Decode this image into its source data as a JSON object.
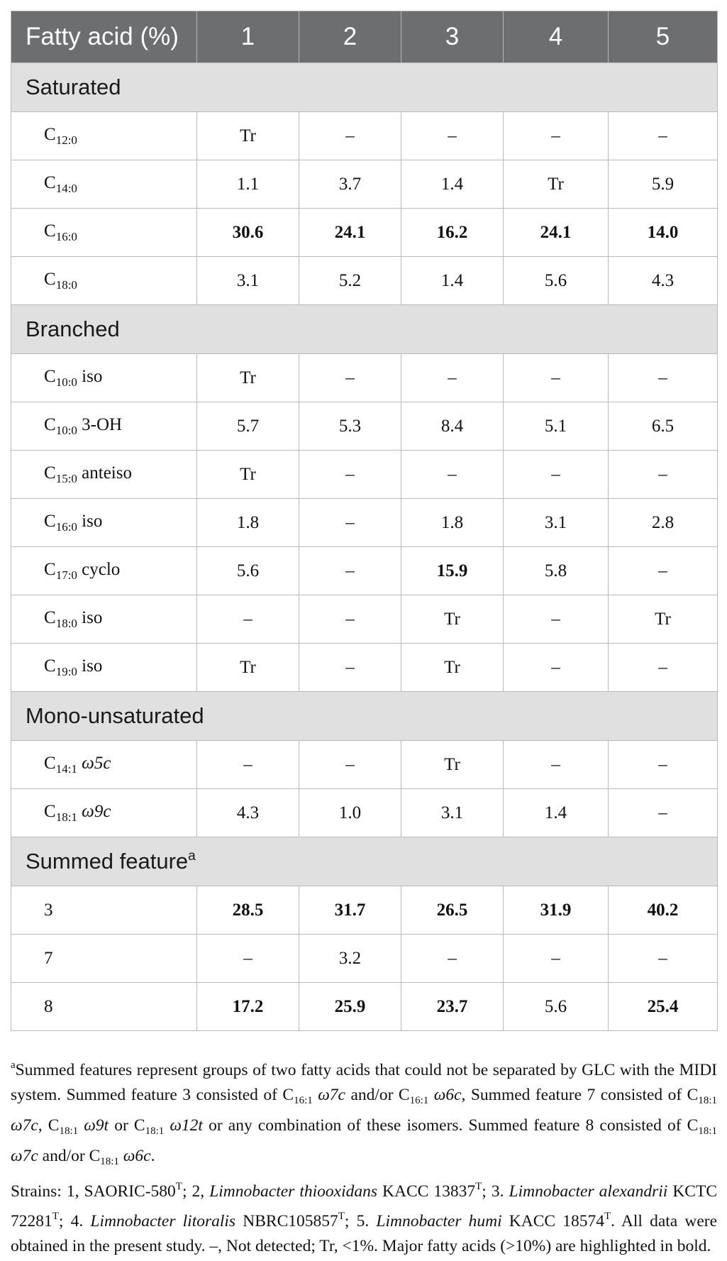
{
  "header": {
    "first": "Fatty acid (%)",
    "cols": [
      "1",
      "2",
      "3",
      "4",
      "5"
    ]
  },
  "sections": [
    {
      "title": "Saturated",
      "title_sup": "",
      "rows": [
        {
          "base": "C",
          "sub": "12:0",
          "suffix": "",
          "values": [
            "Tr",
            "–",
            "–",
            "–",
            "–"
          ],
          "bold": [
            false,
            false,
            false,
            false,
            false
          ]
        },
        {
          "base": "C",
          "sub": "14:0",
          "suffix": "",
          "values": [
            "1.1",
            "3.7",
            "1.4",
            "Tr",
            "5.9"
          ],
          "bold": [
            false,
            false,
            false,
            false,
            false
          ]
        },
        {
          "base": "C",
          "sub": "16:0",
          "suffix": "",
          "values": [
            "30.6",
            "24.1",
            "16.2",
            "24.1",
            "14.0"
          ],
          "bold": [
            true,
            true,
            true,
            true,
            true
          ]
        },
        {
          "base": "C",
          "sub": "18:0",
          "suffix": "",
          "values": [
            "3.1",
            "5.2",
            "1.4",
            "5.6",
            "4.3"
          ],
          "bold": [
            false,
            false,
            false,
            false,
            false
          ]
        }
      ]
    },
    {
      "title": "Branched",
      "title_sup": "",
      "rows": [
        {
          "base": "C",
          "sub": "10:0",
          "suffix": " iso",
          "values": [
            "Tr",
            "–",
            "–",
            "–",
            "–"
          ],
          "bold": [
            false,
            false,
            false,
            false,
            false
          ]
        },
        {
          "base": "C",
          "sub": "10:0",
          "suffix": " 3-OH",
          "values": [
            "5.7",
            "5.3",
            "8.4",
            "5.1",
            "6.5"
          ],
          "bold": [
            false,
            false,
            false,
            false,
            false
          ]
        },
        {
          "base": "C",
          "sub": "15:0",
          "suffix": " anteiso",
          "values": [
            "Tr",
            "–",
            "–",
            "–",
            "–"
          ],
          "bold": [
            false,
            false,
            false,
            false,
            false
          ]
        },
        {
          "base": "C",
          "sub": "16:0",
          "suffix": " iso",
          "values": [
            "1.8",
            "–",
            "1.8",
            "3.1",
            "2.8"
          ],
          "bold": [
            false,
            false,
            false,
            false,
            false
          ]
        },
        {
          "base": "C",
          "sub": "17:0",
          "suffix": " cyclo",
          "values": [
            "5.6",
            "–",
            "15.9",
            "5.8",
            "–"
          ],
          "bold": [
            false,
            false,
            true,
            false,
            false
          ]
        },
        {
          "base": "C",
          "sub": "18:0",
          "suffix": " iso",
          "values": [
            "–",
            "–",
            "Tr",
            "–",
            "Tr"
          ],
          "bold": [
            false,
            false,
            false,
            false,
            false
          ]
        },
        {
          "base": "C",
          "sub": "19:0",
          "suffix": " iso",
          "values": [
            "Tr",
            "–",
            "Tr",
            "–",
            "–"
          ],
          "bold": [
            false,
            false,
            false,
            false,
            false
          ]
        }
      ]
    },
    {
      "title": "Mono-unsaturated",
      "title_sup": "",
      "rows": [
        {
          "base": "C",
          "sub": "14:1",
          "suffix": " ω5c",
          "italic_suffix": true,
          "values": [
            "–",
            "–",
            "Tr",
            "–",
            "–"
          ],
          "bold": [
            false,
            false,
            false,
            false,
            false
          ]
        },
        {
          "base": "C",
          "sub": "18:1",
          "suffix": " ω9c",
          "italic_suffix": true,
          "values": [
            "4.3",
            "1.0",
            "3.1",
            "1.4",
            "–"
          ],
          "bold": [
            false,
            false,
            false,
            false,
            false
          ]
        }
      ]
    },
    {
      "title": "Summed feature",
      "title_sup": "a",
      "rows": [
        {
          "base": "3",
          "sub": "",
          "suffix": "",
          "values": [
            "28.5",
            "31.7",
            "26.5",
            "31.9",
            "40.2"
          ],
          "bold": [
            true,
            true,
            true,
            true,
            true
          ]
        },
        {
          "base": "7",
          "sub": "",
          "suffix": "",
          "values": [
            "–",
            "3.2",
            "–",
            "–",
            "–"
          ],
          "bold": [
            false,
            false,
            false,
            false,
            false
          ]
        },
        {
          "base": "8",
          "sub": "",
          "suffix": "",
          "values": [
            "17.2",
            "25.9",
            "23.7",
            "5.6",
            "25.4"
          ],
          "bold": [
            true,
            true,
            true,
            false,
            true
          ]
        }
      ]
    }
  ],
  "footnotes": {
    "a_marker": "a",
    "a_text_1": "Summed features represent groups of two fatty acids that could not be separated by GLC with the MIDI system. Summed feature 3 consisted of C",
    "a_sub_1": "16:1",
    "a_it_1": " ω7c",
    "a_text_2": " and/or C",
    "a_sub_2": "16:1",
    "a_it_2": " ω6c",
    "a_text_3": ", Summed feature 7 consisted of C",
    "a_sub_3": "18:1",
    "a_it_3": " ω7c",
    "a_text_4": ", C",
    "a_sub_4": "18:1",
    "a_it_4": " ω9t",
    "a_text_5": " or C",
    "a_sub_5": "18:1",
    "a_it_5": " ω12t",
    "a_text_6": " or any combination of these isomers. Summed feature 8 consisted of C",
    "a_sub_6": "18:1",
    "a_it_6": " ω7c",
    "a_text_7": " and/or C",
    "a_sub_7": "18:1",
    "a_it_7": " ω6c",
    "a_text_8": ".",
    "strains_1": "Strains: 1, SAORIC-580",
    "T": "T",
    "strains_2": "; 2, ",
    "strains_sp2": "Limnobacter thiooxidans",
    "strains_3": " KACC 13837",
    "strains_4": "; 3. ",
    "strains_sp3": "Limnobacter alexandrii",
    "strains_5": " KCTC 72281",
    "strains_6": "; 4. ",
    "strains_sp4": "Limnobacter litoralis",
    "strains_7": " NBRC105857",
    "strains_8": "; 5. ",
    "strains_sp5": "Limnobacter humi",
    "strains_9": " KACC 18574",
    "strains_10": ". All data were obtained in the present study. –, Not detected; Tr, <1%. Major fatty acids (>10%) are highlighted in bold."
  }
}
